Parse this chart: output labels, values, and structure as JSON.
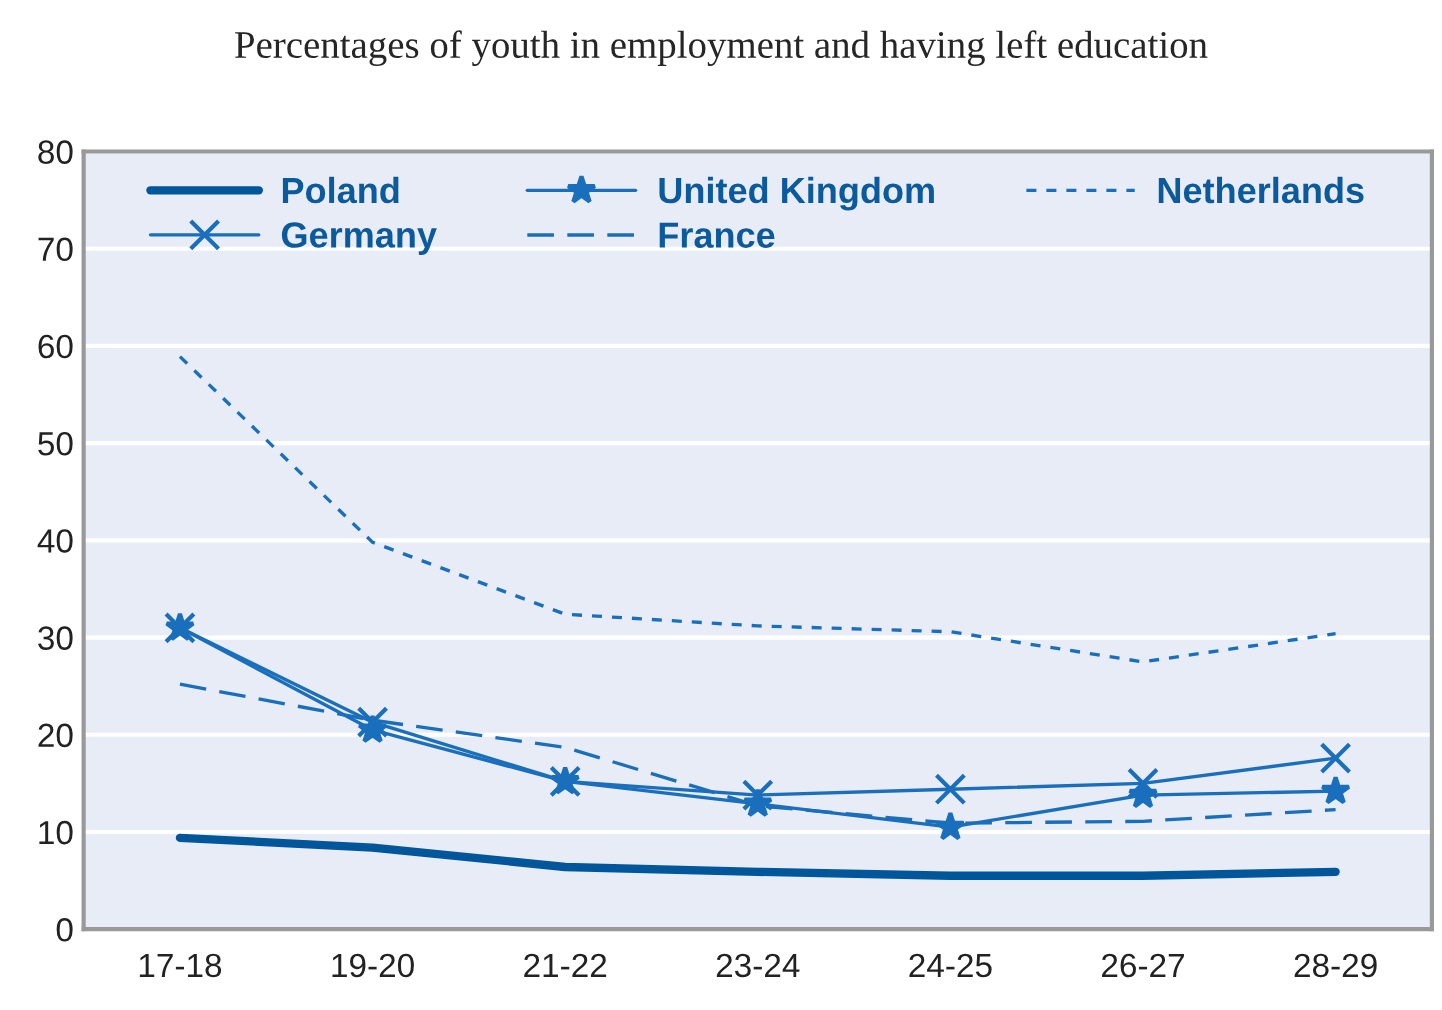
{
  "chart_data": {
    "type": "line",
    "title": "Percentages of youth in employment and having left education",
    "categories": [
      "17-18",
      "19-20",
      "21-22",
      "23-24",
      "24-25",
      "26-27",
      "28-29"
    ],
    "series": [
      {
        "name": "Poland",
        "color": "#00569b",
        "marker": "none",
        "line_style": "solid",
        "values": [
          9.4,
          8.4,
          6.4,
          5.9,
          5.5,
          5.5,
          5.9
        ]
      },
      {
        "name": "Germany",
        "color": "#1a6fbd",
        "marker": "cross",
        "line_style": "solid",
        "values": [
          31,
          21.3,
          15.2,
          13.8,
          14.4,
          15.0,
          17.6
        ]
      },
      {
        "name": "United Kingdom",
        "color": "#1a6fbd",
        "marker": "star",
        "line_style": "solid",
        "values": [
          31,
          20.5,
          15.2,
          12.9,
          10.5,
          13.8,
          14.2
        ]
      },
      {
        "name": "France",
        "color": "#1a6fbd",
        "marker": "none",
        "line_style": "dashed",
        "values": [
          25.2,
          21.5,
          18.7,
          12.7,
          10.9,
          11.1,
          12.3
        ]
      },
      {
        "name": "Netherlands",
        "color": "#1a6fbd",
        "marker": "none",
        "line_style": "dotted",
        "values": [
          58.9,
          39.8,
          32.4,
          31.2,
          30.6,
          27.5,
          30.4
        ]
      }
    ],
    "ylim": [
      0,
      80
    ],
    "yticks": [
      0,
      10,
      20,
      30,
      40,
      50,
      60,
      70,
      80
    ],
    "grid": "y",
    "legend": "top"
  }
}
